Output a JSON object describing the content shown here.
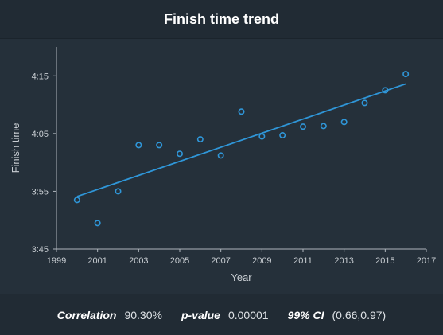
{
  "chart_data": {
    "type": "scatter",
    "title": "Finish time trend",
    "xlabel": "Year",
    "ylabel": "Finish time",
    "xlim": [
      1999,
      2017
    ],
    "ylim_minutes": [
      225,
      260
    ],
    "xticks": [
      1999,
      2001,
      2003,
      2005,
      2007,
      2009,
      2011,
      2013,
      2015,
      2017
    ],
    "yticks": [
      {
        "value": 225,
        "label": "3:45"
      },
      {
        "value": 235,
        "label": "3:55"
      },
      {
        "value": 245,
        "label": "4:05"
      },
      {
        "value": 255,
        "label": "4:15"
      }
    ],
    "x": [
      2000,
      2001,
      2002,
      2003,
      2004,
      2005,
      2006,
      2007,
      2008,
      2009,
      2010,
      2011,
      2012,
      2013,
      2014,
      2015,
      2016
    ],
    "y_minutes": [
      233.5,
      229.5,
      235,
      243,
      243,
      241.5,
      244,
      241.2,
      248.8,
      244.5,
      244.7,
      246.2,
      246.3,
      247,
      250.3,
      252.5,
      255.3
    ],
    "trendline": {
      "x": [
        2000,
        2016
      ],
      "y_minutes": [
        234.1,
        253.6
      ]
    },
    "colors": {
      "points": "#2f96d8",
      "line": "#2f96d8",
      "text": "#c9ced3"
    },
    "grid": false
  },
  "stats": {
    "correlation_label": "Correlation",
    "correlation_value": "90.30%",
    "pvalue_label": "p-value",
    "pvalue_value": "0.00001",
    "ci_label": "99% CI",
    "ci_value": "(0.66,0.97)"
  }
}
